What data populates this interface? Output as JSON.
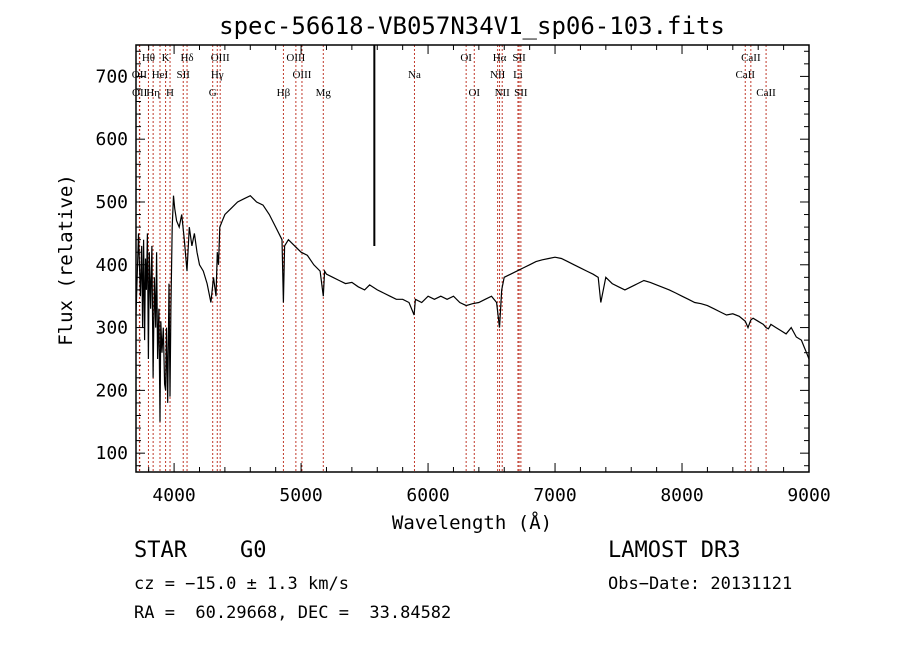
{
  "chart_data": {
    "type": "line",
    "title": "spec-56618-VB057N34V1_sp06-103.fits",
    "xlabel": "Wavelength (Å)",
    "ylabel": "Flux (relative)",
    "xlim": [
      3700,
      9000
    ],
    "ylim": [
      70,
      750
    ],
    "xticks": [
      {
        "value": 4000,
        "label": "4000"
      },
      {
        "value": 5000,
        "label": "5000"
      },
      {
        "value": 6000,
        "label": "6000"
      },
      {
        "value": 7000,
        "label": "7000"
      },
      {
        "value": 8000,
        "label": "8000"
      },
      {
        "value": 9000,
        "label": "9000"
      }
    ],
    "yticks": [
      {
        "value": 100,
        "label": "100"
      },
      {
        "value": 200,
        "label": "200"
      },
      {
        "value": 300,
        "label": "300"
      },
      {
        "value": 400,
        "label": "400"
      },
      {
        "value": 500,
        "label": "500"
      },
      {
        "value": 600,
        "label": "600"
      },
      {
        "value": 700,
        "label": "700"
      }
    ],
    "line_color": "#000000",
    "marker_color": "#c0392b",
    "spectrum": {
      "x": [
        3700,
        3720,
        3735,
        3745,
        3752,
        3760,
        3768,
        3775,
        3782,
        3790,
        3798,
        3805,
        3815,
        3825,
        3835,
        3845,
        3855,
        3862,
        3870,
        3880,
        3889,
        3895,
        3905,
        3915,
        3925,
        3933,
        3940,
        3950,
        3960,
        3968,
        3975,
        3985,
        3995,
        4005,
        4020,
        4040,
        4060,
        4080,
        4102,
        4120,
        4140,
        4160,
        4180,
        4200,
        4230,
        4260,
        4290,
        4310,
        4330,
        4340,
        4350,
        4360,
        4380,
        4400,
        4450,
        4500,
        4550,
        4600,
        4650,
        4700,
        4750,
        4800,
        4850,
        4861,
        4870,
        4900,
        4950,
        5000,
        5050,
        5100,
        5150,
        5175,
        5185,
        5200,
        5250,
        5300,
        5350,
        5400,
        5450,
        5500,
        5540,
        5600,
        5650,
        5700,
        5750,
        5800,
        5850,
        5890,
        5900,
        5950,
        6000,
        6050,
        6100,
        6150,
        6200,
        6250,
        6300,
        6350,
        6400,
        6450,
        6500,
        6540,
        6563,
        6580,
        6600,
        6650,
        6700,
        6750,
        6800,
        6850,
        6900,
        6950,
        7000,
        7050,
        7100,
        7150,
        7200,
        7250,
        7300,
        7340,
        7360,
        7400,
        7450,
        7500,
        7550,
        7600,
        7650,
        7700,
        7750,
        7800,
        7850,
        7900,
        7950,
        8000,
        8050,
        8100,
        8150,
        8200,
        8250,
        8300,
        8350,
        8400,
        8450,
        8498,
        8520,
        8542,
        8560,
        8600,
        8640,
        8662,
        8680,
        8700,
        8740,
        8780,
        8820,
        8860,
        8900,
        8940,
        8960,
        8980,
        9000
      ],
      "y": [
        320,
        450,
        350,
        430,
        300,
        440,
        280,
        410,
        360,
        450,
        250,
        420,
        330,
        430,
        220,
        380,
        300,
        420,
        250,
        330,
        150,
        310,
        260,
        300,
        210,
        200,
        300,
        180,
        370,
        190,
        330,
        460,
        510,
        490,
        470,
        460,
        480,
        440,
        390,
        460,
        430,
        450,
        420,
        400,
        390,
        370,
        340,
        380,
        350,
        420,
        400,
        460,
        470,
        480,
        490,
        500,
        505,
        510,
        500,
        495,
        480,
        460,
        440,
        340,
        430,
        440,
        430,
        420,
        415,
        400,
        390,
        350,
        390,
        385,
        380,
        375,
        370,
        372,
        365,
        360,
        368,
        360,
        355,
        350,
        345,
        345,
        340,
        320,
        345,
        340,
        350,
        345,
        350,
        345,
        350,
        340,
        335,
        338,
        340,
        345,
        350,
        340,
        300,
        360,
        380,
        385,
        390,
        395,
        400,
        405,
        408,
        410,
        412,
        410,
        405,
        400,
        395,
        390,
        385,
        380,
        340,
        380,
        370,
        365,
        360,
        365,
        370,
        375,
        372,
        368,
        364,
        360,
        355,
        350,
        345,
        340,
        338,
        335,
        330,
        325,
        320,
        322,
        318,
        310,
        300,
        312,
        315,
        310,
        305,
        300,
        298,
        305,
        300,
        295,
        290,
        300,
        285,
        280,
        270,
        260,
        250
      ]
    },
    "lines": [
      {
        "label": "Hθ",
        "x": 3798,
        "row": 1
      },
      {
        "label": "K",
        "x": 3933,
        "row": 1
      },
      {
        "label": "Hδ",
        "x": 4102,
        "row": 1
      },
      {
        "label": "OIII",
        "x": 4363,
        "row": 1
      },
      {
        "label": "OIII",
        "x": 4959,
        "row": 1
      },
      {
        "label": "OI",
        "x": 6300,
        "row": 1
      },
      {
        "label": "Hα",
        "x": 6563,
        "row": 1
      },
      {
        "label": "SII",
        "x": 6717,
        "row": 1
      },
      {
        "label": "CaII",
        "x": 8542,
        "row": 1
      },
      {
        "label": "OII",
        "x": 3727,
        "row": 2
      },
      {
        "label": "HeI",
        "x": 3889,
        "row": 2
      },
      {
        "label": "SII",
        "x": 4072,
        "row": 2
      },
      {
        "label": "Hγ",
        "x": 4340,
        "row": 2
      },
      {
        "label": "OIII",
        "x": 5007,
        "row": 2
      },
      {
        "label": "Na",
        "x": 5893,
        "row": 2
      },
      {
        "label": "NII",
        "x": 6548,
        "row": 2
      },
      {
        "label": "Li",
        "x": 6708,
        "row": 2
      },
      {
        "label": "CaII",
        "x": 8498,
        "row": 2
      },
      {
        "label": "OII",
        "x": 3729,
        "row": 3
      },
      {
        "label": "Hη",
        "x": 3835,
        "row": 3
      },
      {
        "label": "H",
        "x": 3968,
        "row": 3
      },
      {
        "label": "G",
        "x": 4304,
        "row": 3
      },
      {
        "label": "Hβ",
        "x": 4861,
        "row": 3
      },
      {
        "label": "Mg",
        "x": 5175,
        "row": 3
      },
      {
        "label": "OI",
        "x": 6364,
        "row": 3
      },
      {
        "label": "NII",
        "x": 6584,
        "row": 3
      },
      {
        "label": "SII",
        "x": 6731,
        "row": 3
      },
      {
        "label": "CaII",
        "x": 8662,
        "row": 3
      }
    ],
    "spike": {
      "x": 5577,
      "y_top": 750,
      "y_bottom": 430
    }
  },
  "info": {
    "class": "STAR",
    "subclass": "G0",
    "survey": "LAMOST DR3",
    "cz": "cz = −15.0 ± 1.3 km/s",
    "obs_date": "Obs−Date: 20131121",
    "coords": "RA =  60.29668, DEC =  33.84582"
  }
}
